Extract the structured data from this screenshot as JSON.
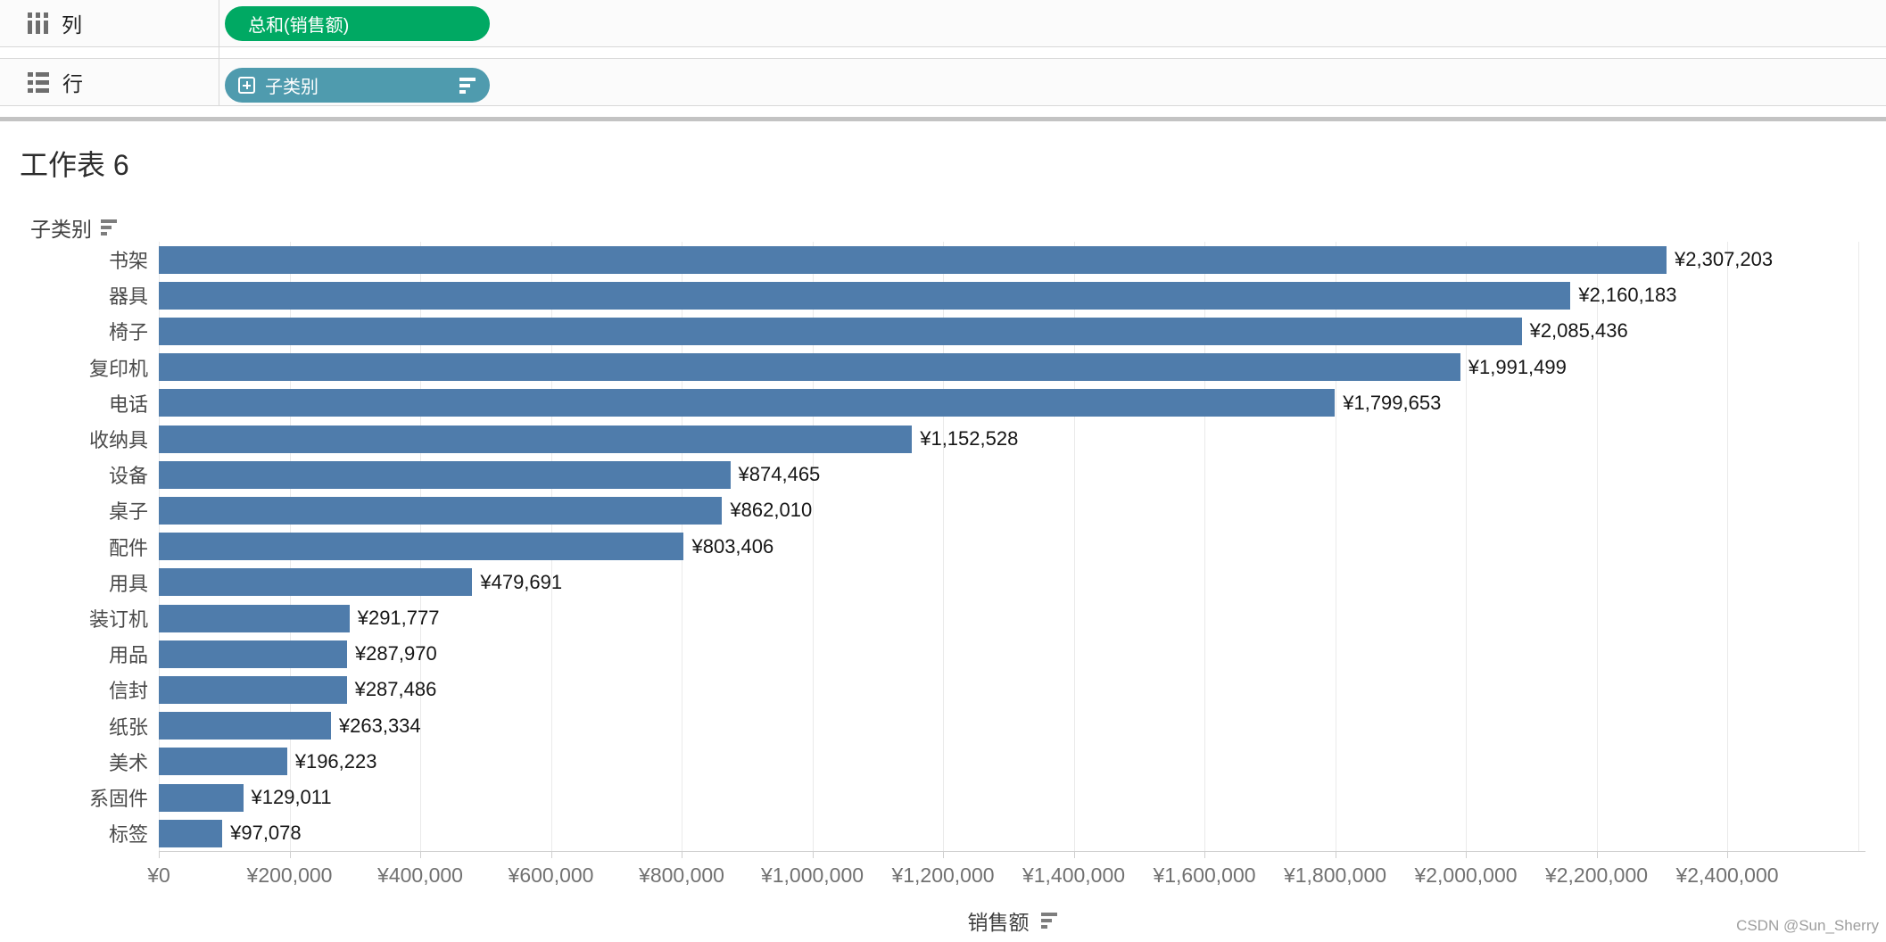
{
  "shelves": {
    "columns": {
      "label": "列",
      "pill": "总和(销售额)"
    },
    "rows": {
      "label": "行",
      "pill": "子类别"
    }
  },
  "sheet": {
    "title": "工作表 6"
  },
  "row_header": {
    "label": "子类别"
  },
  "chart_data": {
    "type": "bar",
    "orientation": "horizontal",
    "title": "工作表 6",
    "xlabel": "销售额",
    "ylabel": "子类别",
    "categories": [
      "书架",
      "器具",
      "椅子",
      "复印机",
      "电话",
      "收纳具",
      "设备",
      "桌子",
      "配件",
      "用具",
      "装订机",
      "用品",
      "信封",
      "纸张",
      "美术",
      "系固件",
      "标签"
    ],
    "values": [
      2307203,
      2160183,
      2085436,
      1991499,
      1799653,
      1152528,
      874465,
      862010,
      803406,
      479691,
      291777,
      287970,
      287486,
      263334,
      196223,
      129011,
      97078
    ],
    "value_labels": [
      "¥2,307,203",
      "¥2,160,183",
      "¥2,085,436",
      "¥1,991,499",
      "¥1,799,653",
      "¥1,152,528",
      "¥874,465",
      "¥862,010",
      "¥803,406",
      "¥479,691",
      "¥291,777",
      "¥287,970",
      "¥287,486",
      "¥263,334",
      "¥196,223",
      "¥129,011",
      "¥97,078"
    ],
    "x_ticks": [
      "¥0",
      "¥200,000",
      "¥400,000",
      "¥600,000",
      "¥800,000",
      "¥1,000,000",
      "¥1,200,000",
      "¥1,400,000",
      "¥1,600,000",
      "¥1,800,000",
      "¥2,000,000",
      "¥2,200,000",
      "¥2,400,000"
    ],
    "x_tick_step": 200000,
    "xlim": [
      0,
      2600000
    ],
    "grid": true,
    "sorted": "descending"
  },
  "colors": {
    "bar": "#4f7cab",
    "pill_green": "#00a963",
    "pill_blue": "#4f9bae",
    "gridline": "#eaeaea",
    "axis_line": "#cfcfcf"
  },
  "icons": {
    "columns_icon": "columns-shelf-icon",
    "rows_icon": "rows-shelf-icon",
    "expand_icon": "expand-plus-icon",
    "sort_icon": "sort-descending-icon"
  },
  "watermark": "CSDN @Sun_Sherry"
}
